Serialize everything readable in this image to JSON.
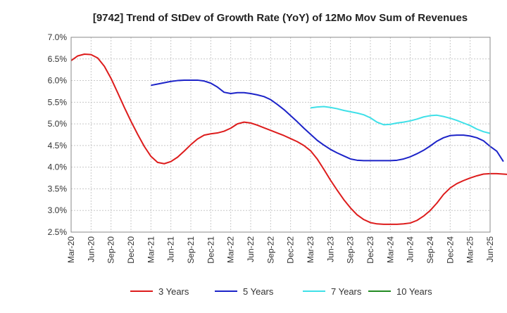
{
  "chart_data": {
    "type": "line",
    "title": "[9742]  Trend of StDev of Growth Rate (YoY) of 12Mo Mov Sum of Revenues",
    "xlabel": "",
    "ylabel": "",
    "ylim": [
      2.5,
      7.0
    ],
    "y_ticks": [
      2.5,
      3.0,
      3.5,
      4.0,
      4.5,
      5.0,
      5.5,
      6.0,
      6.5,
      7.0
    ],
    "y_tick_labels": [
      "2.5%",
      "3.0%",
      "3.5%",
      "4.0%",
      "4.5%",
      "5.0%",
      "5.5%",
      "6.0%",
      "6.5%",
      "7.0%"
    ],
    "x_tick_labels": [
      "Mar-20",
      "Jun-20",
      "Sep-20",
      "Dec-20",
      "Mar-21",
      "Jun-21",
      "Sep-21",
      "Dec-21",
      "Mar-22",
      "Jun-22",
      "Sep-22",
      "Dec-22",
      "Mar-23",
      "Jun-23",
      "Sep-23",
      "Dec-23",
      "Mar-24",
      "Jun-24",
      "Sep-24",
      "Dec-24",
      "Mar-25",
      "Jun-25"
    ],
    "x_range_months": [
      0,
      63
    ],
    "grid": true,
    "legend_position": "bottom",
    "series": [
      {
        "name": "3 Years",
        "color": "#dd1c1c",
        "start_month": 0,
        "values": [
          6.46,
          6.57,
          6.61,
          6.6,
          6.52,
          6.33,
          6.05,
          5.72,
          5.38,
          5.06,
          4.76,
          4.48,
          4.25,
          4.11,
          4.08,
          4.13,
          4.23,
          4.37,
          4.52,
          4.65,
          4.74,
          4.77,
          4.79,
          4.83,
          4.9,
          5.0,
          5.04,
          5.02,
          4.97,
          4.91,
          4.85,
          4.79,
          4.73,
          4.66,
          4.59,
          4.5,
          4.38,
          4.19,
          3.95,
          3.7,
          3.47,
          3.25,
          3.06,
          2.9,
          2.79,
          2.72,
          2.69,
          2.68,
          2.68,
          2.68,
          2.69,
          2.71,
          2.77,
          2.87,
          3.0,
          3.17,
          3.37,
          3.52,
          3.62,
          3.69,
          3.75,
          3.8,
          3.84,
          3.85,
          3.85,
          3.84,
          3.83
        ]
      },
      {
        "name": "5 Years",
        "color": "#1c23c8",
        "start_month": 12,
        "values": [
          5.89,
          5.92,
          5.95,
          5.98,
          6.0,
          6.01,
          6.01,
          6.01,
          5.99,
          5.94,
          5.85,
          5.73,
          5.7,
          5.72,
          5.72,
          5.7,
          5.67,
          5.63,
          5.56,
          5.45,
          5.33,
          5.19,
          5.05,
          4.9,
          4.76,
          4.62,
          4.51,
          4.41,
          4.33,
          4.26,
          4.19,
          4.16,
          4.15,
          4.15,
          4.15,
          4.15,
          4.15,
          4.16,
          4.19,
          4.24,
          4.31,
          4.39,
          4.49,
          4.6,
          4.68,
          4.73,
          4.74,
          4.74,
          4.72,
          4.68,
          4.61,
          4.48,
          4.37,
          4.13
        ]
      },
      {
        "name": "7 Years",
        "color": "#3fe0e8",
        "start_month": 36,
        "values": [
          5.37,
          5.39,
          5.4,
          5.38,
          5.35,
          5.31,
          5.28,
          5.25,
          5.21,
          5.14,
          5.04,
          4.98,
          4.99,
          5.02,
          5.04,
          5.07,
          5.11,
          5.16,
          5.19,
          5.2,
          5.17,
          5.13,
          5.08,
          5.02,
          4.96,
          4.88,
          4.82,
          4.78
        ]
      },
      {
        "name": "10 Years",
        "color": "#228b22",
        "start_month": 0,
        "values": []
      }
    ]
  }
}
